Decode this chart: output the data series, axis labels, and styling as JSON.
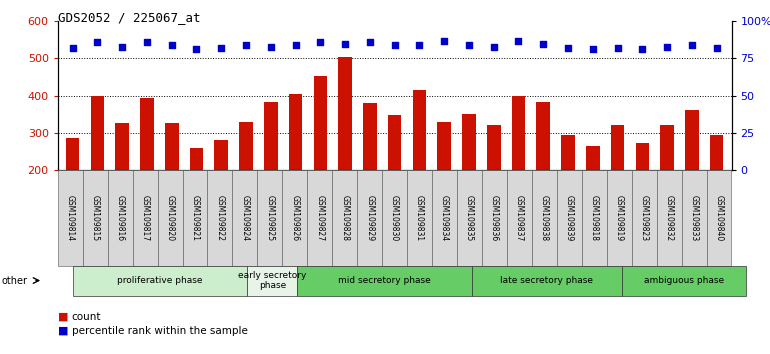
{
  "title": "GDS2052 / 225067_at",
  "samples": [
    "GSM109814",
    "GSM109815",
    "GSM109816",
    "GSM109817",
    "GSM109820",
    "GSM109821",
    "GSM109822",
    "GSM109824",
    "GSM109825",
    "GSM109826",
    "GSM109827",
    "GSM109828",
    "GSM109829",
    "GSM109830",
    "GSM109831",
    "GSM109834",
    "GSM109835",
    "GSM109836",
    "GSM109837",
    "GSM109838",
    "GSM109839",
    "GSM109818",
    "GSM109819",
    "GSM109823",
    "GSM109832",
    "GSM109833",
    "GSM109840"
  ],
  "counts": [
    285,
    400,
    325,
    393,
    325,
    258,
    280,
    328,
    384,
    403,
    453,
    505,
    380,
    348,
    415,
    328,
    350,
    322,
    400,
    382,
    293,
    265,
    320,
    272,
    320,
    360,
    293
  ],
  "percentiles": [
    82,
    86,
    83,
    86,
    84,
    81,
    82,
    84,
    83,
    84,
    86,
    85,
    86,
    84,
    84,
    87,
    84,
    83,
    87,
    85,
    82,
    81,
    82,
    81,
    83,
    84,
    82
  ],
  "phases": [
    {
      "label": "proliferative phase",
      "start": 0,
      "end": 7,
      "color": "#cceecc"
    },
    {
      "label": "early secretory\nphase",
      "start": 7,
      "end": 9,
      "color": "#e8f4e8"
    },
    {
      "label": "mid secretory phase",
      "start": 9,
      "end": 16,
      "color": "#66cc66"
    },
    {
      "label": "late secretory phase",
      "start": 16,
      "end": 22,
      "color": "#66cc66"
    },
    {
      "label": "ambiguous phase",
      "start": 22,
      "end": 27,
      "color": "#66cc66"
    }
  ],
  "bar_color": "#cc1100",
  "marker_color": "#0000cc",
  "ylim_left": [
    200,
    600
  ],
  "ylim_right": [
    0,
    100
  ],
  "yticks_left": [
    200,
    300,
    400,
    500,
    600
  ],
  "yticks_right": [
    0,
    25,
    50,
    75,
    100
  ],
  "grid_lines": [
    300,
    400,
    500
  ],
  "legend_count_label": "count",
  "legend_pct_label": "percentile rank within the sample",
  "other_label": "other",
  "tick_bg_color": "#d8d8d8",
  "phase_border_color": "#333333"
}
